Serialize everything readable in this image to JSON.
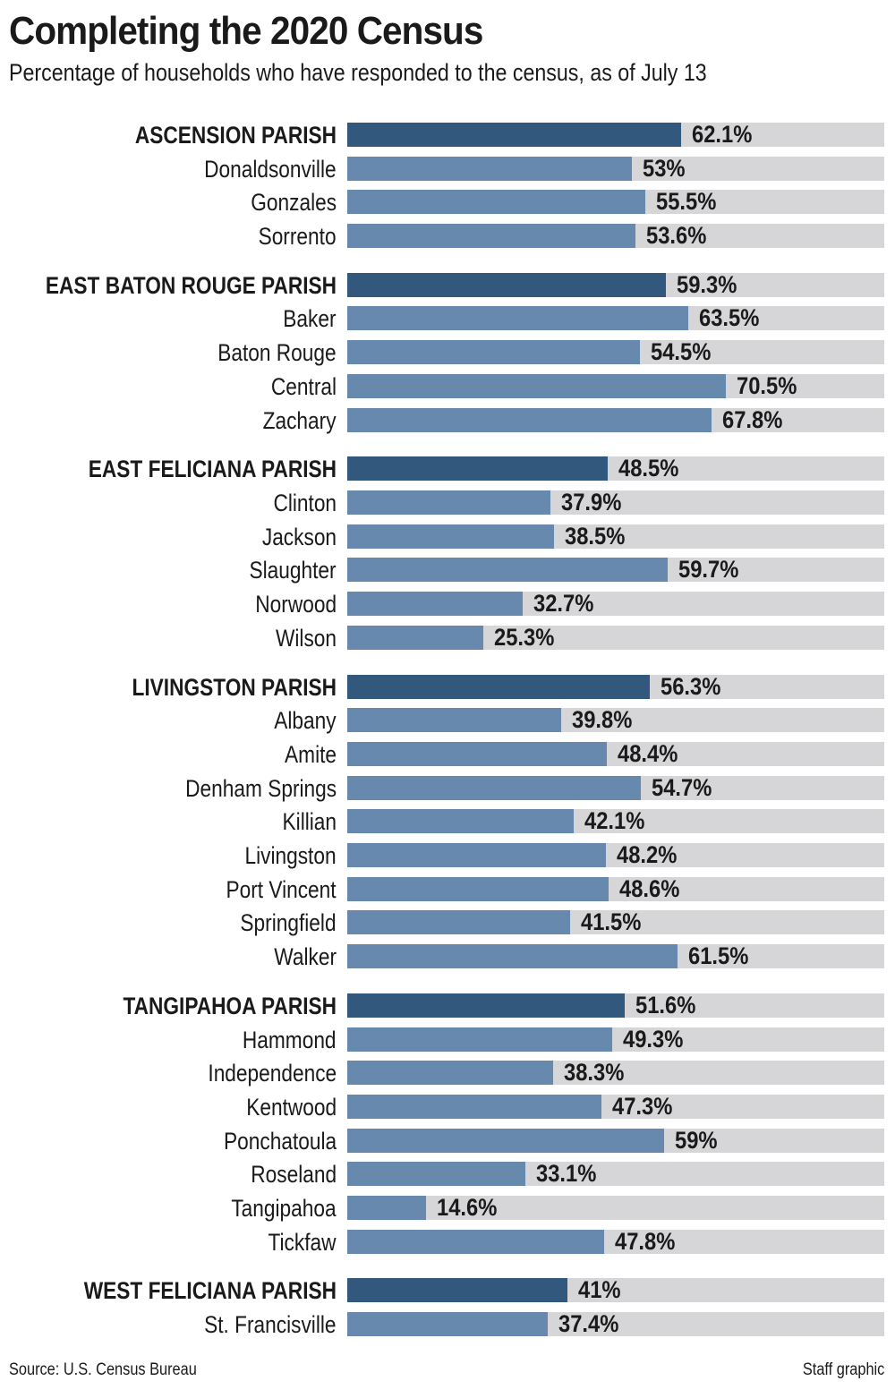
{
  "header": {
    "title": "Completing the 2020 Census",
    "subtitle": "Percentage of households who have responded to the census, as of July 13"
  },
  "footer": {
    "source": "Source: U.S. Census Bureau",
    "credit": "Staff graphic"
  },
  "colors": {
    "parish_bar": "#33587d",
    "city_bar": "#6689ad",
    "track": "#d6d6d8",
    "text": "#1a1a1a"
  },
  "chart_data": {
    "type": "bar",
    "orientation": "horizontal",
    "title": "Completing the 2020 Census",
    "subtitle": "Percentage of households who have responded to the census, as of July 13",
    "xlabel": "",
    "ylabel": "",
    "xlim": [
      0,
      100
    ],
    "grid": false,
    "legend": null,
    "groups": [
      {
        "parish": "ASCENSION PARISH",
        "value": 62.1,
        "label": "62.1%",
        "places": [
          {
            "name": "Donaldsonville",
            "value": 53,
            "label": "53%"
          },
          {
            "name": "Gonzales",
            "value": 55.5,
            "label": "55.5%"
          },
          {
            "name": "Sorrento",
            "value": 53.6,
            "label": "53.6%"
          }
        ]
      },
      {
        "parish": "EAST BATON ROUGE PARISH",
        "value": 59.3,
        "label": "59.3%",
        "places": [
          {
            "name": "Baker",
            "value": 63.5,
            "label": "63.5%"
          },
          {
            "name": "Baton Rouge",
            "value": 54.5,
            "label": "54.5%"
          },
          {
            "name": "Central",
            "value": 70.5,
            "label": "70.5%"
          },
          {
            "name": "Zachary",
            "value": 67.8,
            "label": "67.8%"
          }
        ]
      },
      {
        "parish": "EAST FELICIANA PARISH",
        "value": 48.5,
        "label": "48.5%",
        "places": [
          {
            "name": "Clinton",
            "value": 37.9,
            "label": "37.9%"
          },
          {
            "name": "Jackson",
            "value": 38.5,
            "label": "38.5%"
          },
          {
            "name": "Slaughter",
            "value": 59.7,
            "label": "59.7%"
          },
          {
            "name": "Norwood",
            "value": 32.7,
            "label": "32.7%"
          },
          {
            "name": "Wilson",
            "value": 25.3,
            "label": "25.3%"
          }
        ]
      },
      {
        "parish": "LIVINGSTON PARISH",
        "value": 56.3,
        "label": "56.3%",
        "places": [
          {
            "name": "Albany",
            "value": 39.8,
            "label": "39.8%"
          },
          {
            "name": "Amite",
            "value": 48.4,
            "label": "48.4%"
          },
          {
            "name": "Denham Springs",
            "value": 54.7,
            "label": "54.7%"
          },
          {
            "name": "Killian",
            "value": 42.1,
            "label": "42.1%"
          },
          {
            "name": "Livingston",
            "value": 48.2,
            "label": "48.2%"
          },
          {
            "name": "Port Vincent",
            "value": 48.6,
            "label": "48.6%"
          },
          {
            "name": "Springfield",
            "value": 41.5,
            "label": "41.5%"
          },
          {
            "name": "Walker",
            "value": 61.5,
            "label": "61.5%"
          }
        ]
      },
      {
        "parish": "TANGIPAHOA PARISH",
        "value": 51.6,
        "label": "51.6%",
        "places": [
          {
            "name": "Hammond",
            "value": 49.3,
            "label": "49.3%"
          },
          {
            "name": "Independence",
            "value": 38.3,
            "label": "38.3%"
          },
          {
            "name": "Kentwood",
            "value": 47.3,
            "label": "47.3%"
          },
          {
            "name": "Ponchatoula",
            "value": 59,
            "label": "59%"
          },
          {
            "name": "Roseland",
            "value": 33.1,
            "label": "33.1%"
          },
          {
            "name": "Tangipahoa",
            "value": 14.6,
            "label": "14.6%"
          },
          {
            "name": "Tickfaw",
            "value": 47.8,
            "label": "47.8%"
          }
        ]
      },
      {
        "parish": "WEST FELICIANA PARISH",
        "value": 41,
        "label": "41%",
        "places": [
          {
            "name": "St. Francisville",
            "value": 37.4,
            "label": "37.4%"
          }
        ]
      }
    ]
  }
}
